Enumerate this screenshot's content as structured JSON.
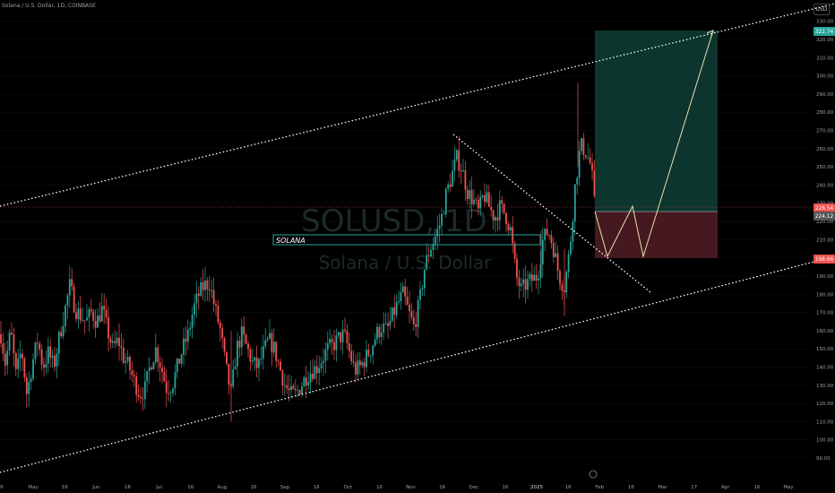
{
  "header": {
    "symbol_line": "Solana / U.S. Dollar, 1D, COINBASE",
    "currency": "USD"
  },
  "watermark": {
    "ticker": "SOLUSD, 1D",
    "name": "Solana / U.S. Dollar"
  },
  "label_box": {
    "text": "SOLANA"
  },
  "colors": {
    "up": "#26a69a",
    "down": "#ef5350",
    "channel": "#ffffff",
    "target_zone": "#0d3b33",
    "stop_zone": "#4a1a22",
    "projection": "#e8e0b0"
  },
  "chart_data": {
    "type": "candlestick",
    "title": "Solana / U.S. Dollar, 1D, COINBASE",
    "price_axis": {
      "ticks": [
        90,
        100,
        110,
        120,
        130,
        140,
        150,
        160,
        170,
        180,
        190,
        200,
        210,
        220,
        230,
        240,
        250,
        260,
        270,
        280,
        290,
        300,
        310,
        320,
        330
      ]
    },
    "price_labels": [
      {
        "value": 322.74,
        "text": "322.74",
        "color": "#26a69a"
      },
      {
        "value": 226.54,
        "text": "226.54",
        "color": "#ef5350"
      },
      {
        "value": 224.12,
        "text": "224.12",
        "color": "#555555"
      },
      {
        "value": 198.66,
        "text": "198.66",
        "color": "#ef5350"
      }
    ],
    "time_axis": [
      "6",
      "May",
      "16",
      "Jun",
      "16",
      "Jul",
      "16",
      "Aug",
      "16",
      "Sep",
      "16",
      "Oct",
      "16",
      "Nov",
      "16",
      "Dec",
      "16",
      "2025",
      "16",
      "Feb",
      "16",
      "Mar",
      "17",
      "Apr",
      "16",
      "May"
    ],
    "trade_setup": {
      "target": 322.74,
      "entry": 226.54,
      "stop": 198.66
    },
    "price_path": [
      [
        1,
        158
      ],
      [
        6,
        142
      ],
      [
        12,
        160
      ],
      [
        18,
        135
      ],
      [
        24,
        150
      ],
      [
        30,
        125
      ],
      [
        36,
        142
      ],
      [
        42,
        155
      ],
      [
        48,
        140
      ],
      [
        54,
        148
      ],
      [
        60,
        140
      ],
      [
        66,
        156
      ],
      [
        72,
        170
      ],
      [
        78,
        185
      ],
      [
        84,
        172
      ],
      [
        90,
        168
      ],
      [
        96,
        165
      ],
      [
        102,
        170
      ],
      [
        108,
        165
      ],
      [
        114,
        172
      ],
      [
        120,
        160
      ],
      [
        126,
        150
      ],
      [
        132,
        155
      ],
      [
        138,
        145
      ],
      [
        144,
        140
      ],
      [
        150,
        132
      ],
      [
        156,
        125
      ],
      [
        162,
        128
      ],
      [
        168,
        142
      ],
      [
        174,
        150
      ],
      [
        180,
        140
      ],
      [
        186,
        128
      ],
      [
        192,
        130
      ],
      [
        198,
        140
      ],
      [
        204,
        150
      ],
      [
        210,
        158
      ],
      [
        216,
        172
      ],
      [
        222,
        180
      ],
      [
        228,
        185
      ],
      [
        234,
        186
      ],
      [
        240,
        172
      ],
      [
        246,
        160
      ],
      [
        252,
        140
      ],
      [
        258,
        125
      ],
      [
        264,
        150
      ],
      [
        270,
        158
      ],
      [
        276,
        150
      ],
      [
        282,
        142
      ],
      [
        288,
        140
      ],
      [
        294,
        148
      ],
      [
        300,
        155
      ],
      [
        306,
        150
      ],
      [
        312,
        140
      ],
      [
        318,
        130
      ],
      [
        324,
        125
      ],
      [
        330,
        125
      ],
      [
        336,
        130
      ],
      [
        342,
        135
      ],
      [
        348,
        138
      ],
      [
        354,
        140
      ],
      [
        360,
        145
      ],
      [
        366,
        150
      ],
      [
        372,
        152
      ],
      [
        378,
        156
      ],
      [
        384,
        158
      ],
      [
        390,
        148
      ],
      [
        396,
        138
      ],
      [
        402,
        140
      ],
      [
        408,
        145
      ],
      [
        414,
        150
      ],
      [
        420,
        158
      ],
      [
        426,
        162
      ],
      [
        432,
        160
      ],
      [
        438,
        168
      ],
      [
        444,
        175
      ],
      [
        450,
        180
      ],
      [
        456,
        170
      ],
      [
        462,
        162
      ],
      [
        468,
        175
      ],
      [
        474,
        195
      ],
      [
        480,
        205
      ],
      [
        486,
        212
      ],
      [
        492,
        220
      ],
      [
        498,
        235
      ],
      [
        504,
        245
      ],
      [
        510,
        255
      ],
      [
        516,
        248
      ],
      [
        522,
        236
      ],
      [
        528,
        232
      ],
      [
        534,
        225
      ],
      [
        540,
        235
      ],
      [
        546,
        228
      ],
      [
        552,
        222
      ],
      [
        558,
        228
      ],
      [
        564,
        224
      ],
      [
        570,
        215
      ],
      [
        576,
        190
      ],
      [
        582,
        182
      ],
      [
        588,
        186
      ],
      [
        594,
        188
      ],
      [
        600,
        190
      ],
      [
        606,
        210
      ],
      [
        612,
        215
      ],
      [
        618,
        205
      ],
      [
        624,
        190
      ],
      [
        630,
        184
      ],
      [
        636,
        205
      ],
      [
        642,
        240
      ],
      [
        648,
        262
      ],
      [
        654,
        258
      ],
      [
        660,
        250
      ],
      [
        664,
        226
      ]
    ],
    "channel_upper": [
      [
        0,
        230
      ],
      [
        932,
        4
      ]
    ],
    "channel_lower": [
      [
        0,
        527
      ],
      [
        932,
        286
      ]
    ],
    "trendline": [
      [
        506,
        150
      ],
      [
        726,
        326
      ]
    ],
    "projection_path": [
      [
        664,
        236
      ],
      [
        678,
        286
      ],
      [
        706,
        230
      ],
      [
        718,
        286
      ],
      [
        796,
        34
      ]
    ]
  }
}
